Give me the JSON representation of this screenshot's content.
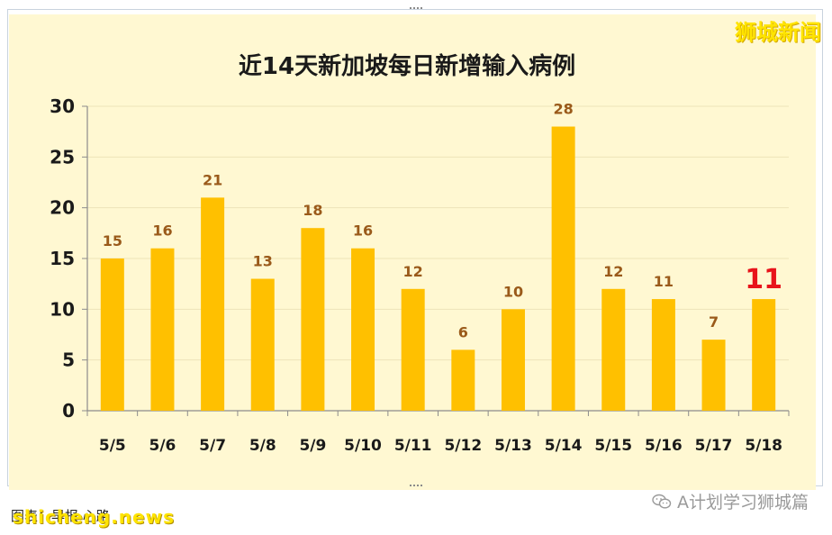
{
  "watermark": "狮城新闻",
  "footer": {
    "credit": "图表：早报 心路",
    "site": "shicheng.news",
    "wechat": "A计划学习狮城篇"
  },
  "colors": {
    "bar": "#ffc000",
    "value_label": "#9a5a1a",
    "highlight_label": "#e8141b",
    "plot_bg": "#fff8d2"
  },
  "chart_data": {
    "type": "bar",
    "title": "近14天新加坡每日新增输入病例",
    "categories": [
      "5/5",
      "5/6",
      "5/7",
      "5/8",
      "5/9",
      "5/10",
      "5/11",
      "5/12",
      "5/13",
      "5/14",
      "5/15",
      "5/16",
      "5/17",
      "5/18"
    ],
    "values": [
      15,
      16,
      21,
      13,
      18,
      16,
      12,
      6,
      10,
      28,
      12,
      11,
      7,
      11
    ],
    "highlight_index": 13,
    "ylim": [
      0,
      30
    ],
    "yticks": [
      0,
      5,
      10,
      15,
      20,
      25,
      30
    ],
    "grid": true,
    "legend": "none",
    "xlabel": "",
    "ylabel": ""
  }
}
